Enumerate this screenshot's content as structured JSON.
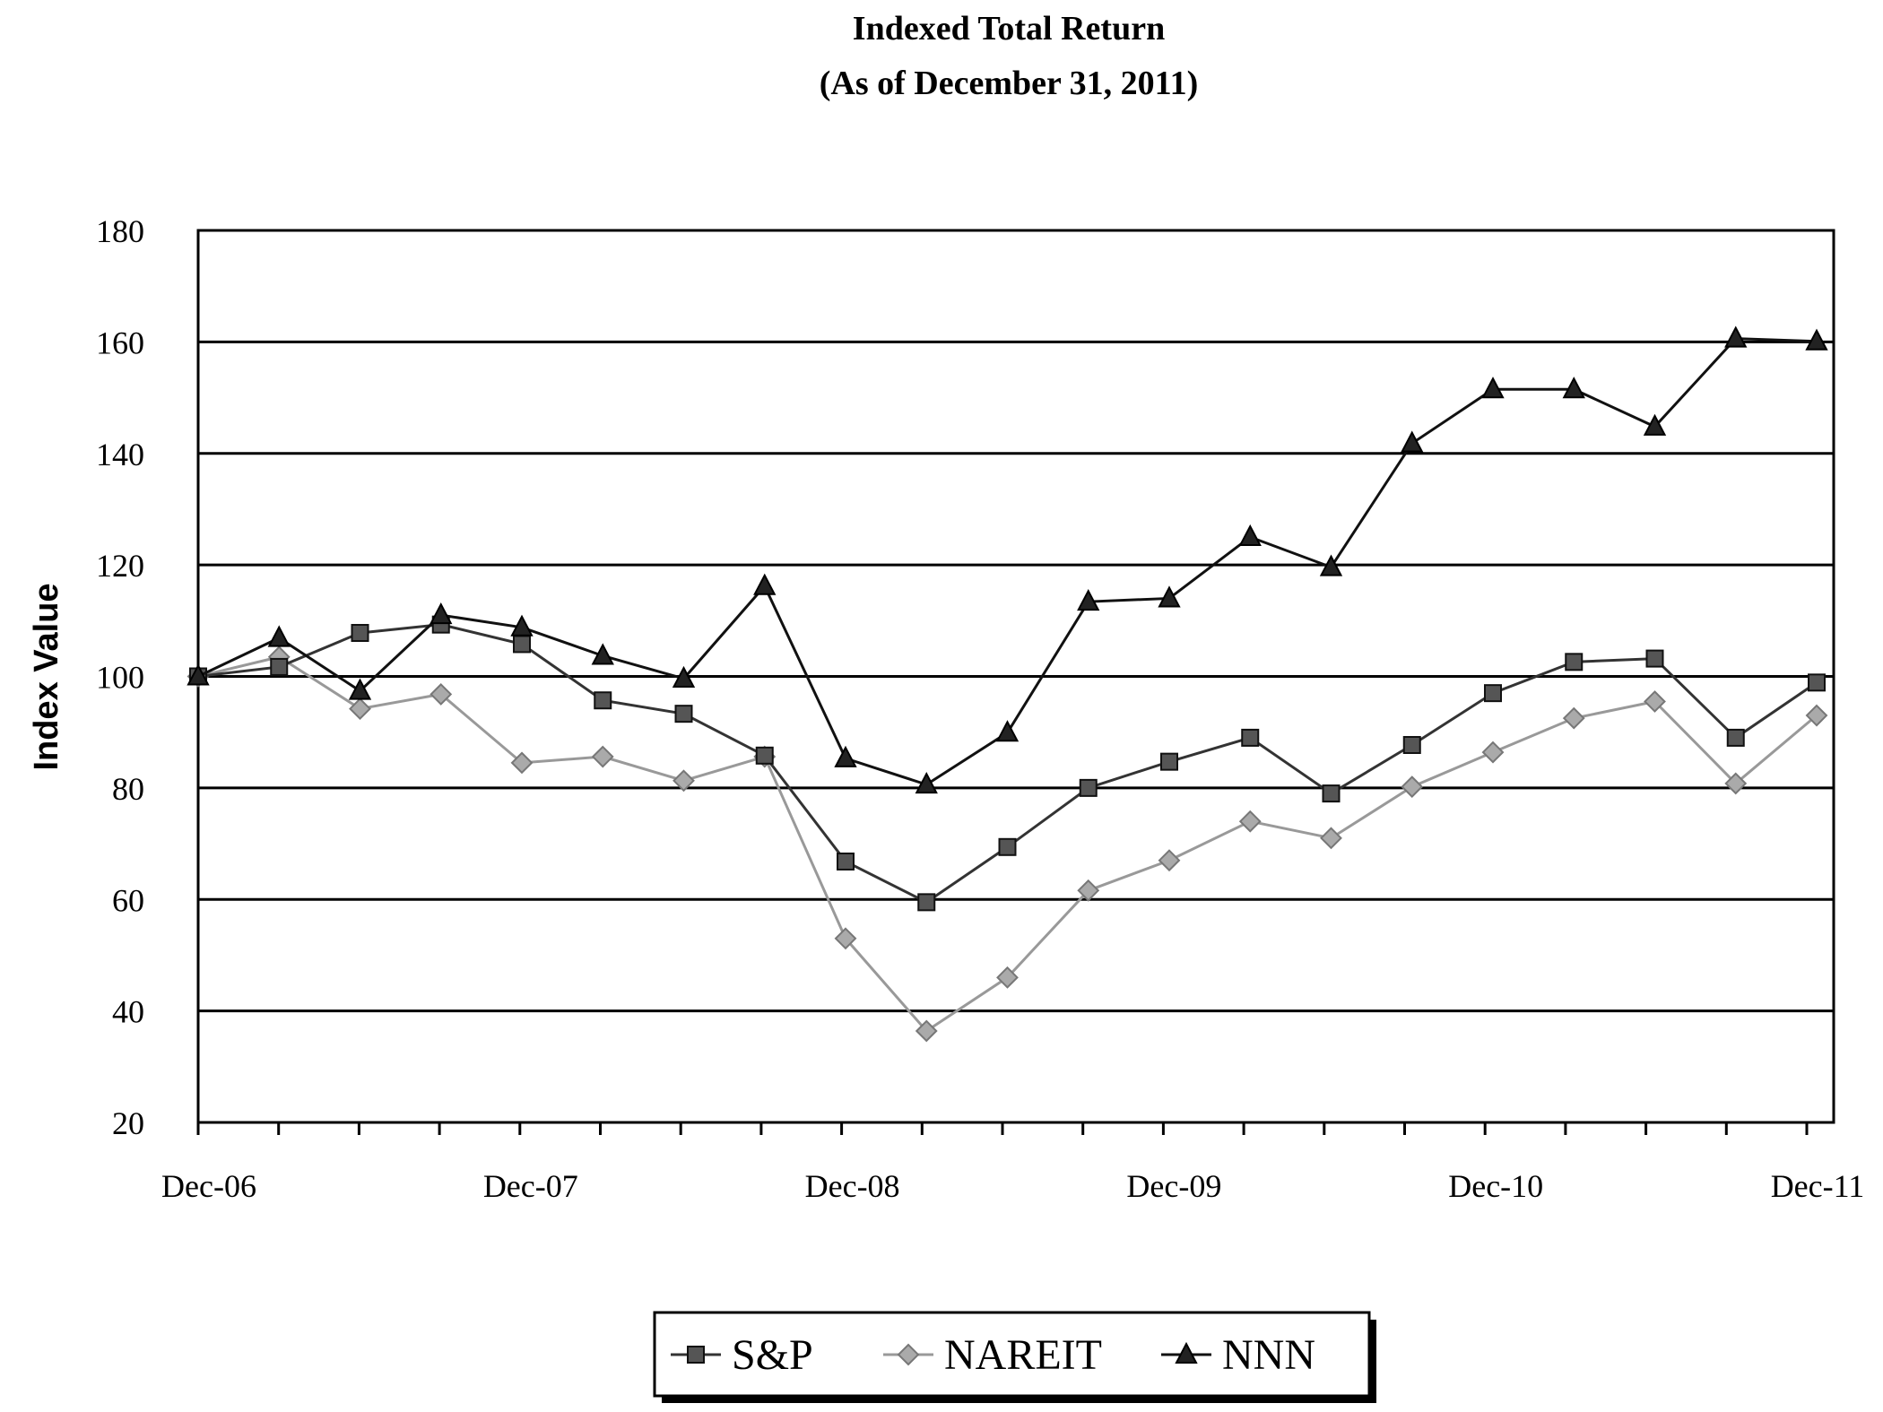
{
  "chart_data": {
    "type": "line",
    "title": "Indexed Total Return",
    "subtitle": "(As of December 31, 2011)",
    "xlabel": "",
    "ylabel": "Index Value",
    "ylim": [
      20,
      180
    ],
    "yticks": [
      20,
      40,
      60,
      80,
      100,
      120,
      140,
      160,
      180
    ],
    "x_tick_labels": [
      "Dec-06",
      "Dec-07",
      "Dec-08",
      "Dec-09",
      "Dec-10",
      "Dec-11"
    ],
    "x_period": "quarterly",
    "grid": "horizontal",
    "legend_position": "bottom",
    "series": [
      {
        "name": "S&P",
        "marker": "square",
        "color": "#333333",
        "values": [
          100,
          101.7,
          107.8,
          109.3,
          105.8,
          95.7,
          93.3,
          85.8,
          66.8,
          59.5,
          69.4,
          80,
          84.7,
          89,
          79,
          87.7,
          97,
          102.6,
          103.2,
          89,
          98.9
        ]
      },
      {
        "name": "NAREIT",
        "marker": "diamond",
        "color": "#999999",
        "values": [
          100,
          103.5,
          94.2,
          96.8,
          84.5,
          85.6,
          81.3,
          85.6,
          53,
          36.4,
          46,
          61.6,
          67,
          74,
          71,
          80.2,
          86.4,
          92.5,
          95.5,
          80.8,
          93
        ]
      },
      {
        "name": "NNN",
        "marker": "triangle",
        "color": "#111111",
        "values": [
          100,
          106.9,
          97.4,
          111,
          108.8,
          103.7,
          99.6,
          116.2,
          85.3,
          80.6,
          89.9,
          113.4,
          114,
          125,
          119.6,
          141.8,
          151.5,
          151.5,
          144.8,
          160.6,
          160.1
        ]
      }
    ]
  }
}
